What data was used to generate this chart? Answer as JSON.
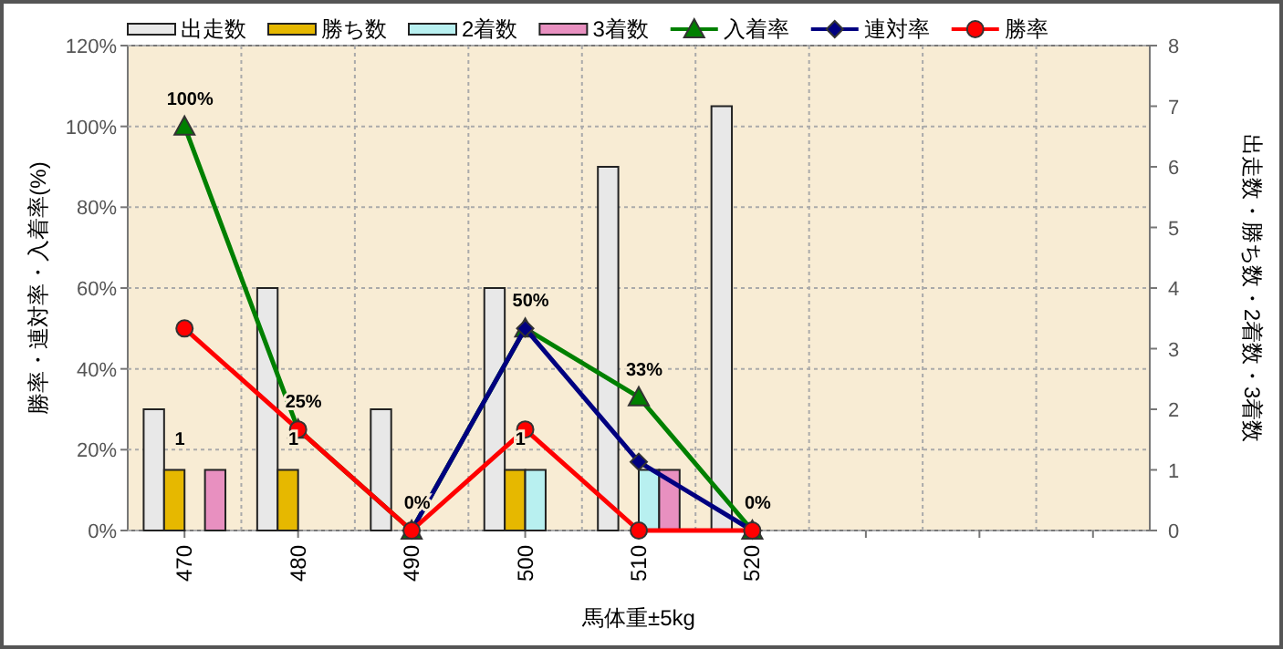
{
  "chart_data": {
    "type": "bar",
    "xlabel": "馬体重±5kg",
    "ylabel": "勝率・連対率・入着率(%)",
    "y2label": "出走数・勝ち数・2着数・3着数",
    "categories": [
      "470",
      "480",
      "490",
      "500",
      "510",
      "520",
      null,
      null,
      null
    ],
    "series": [
      {
        "name": "出走数",
        "axis": "y2",
        "color": "#e8e8e8",
        "values": [
          2,
          4,
          2,
          4,
          6,
          7,
          null,
          null,
          null
        ]
      },
      {
        "name": "勝ち数",
        "axis": "y2",
        "color": "#e6b800",
        "values": [
          1,
          1,
          0,
          1,
          0,
          0,
          null,
          null,
          null
        ],
        "value_labels": [
          "1",
          "1",
          null,
          "1",
          null,
          null,
          null,
          null,
          null
        ]
      },
      {
        "name": "2着数",
        "axis": "y2",
        "color": "#b8f0f0",
        "values": [
          0,
          0,
          0,
          1,
          1,
          0,
          null,
          null,
          null
        ]
      },
      {
        "name": "3着数",
        "axis": "y2",
        "color": "#e890c0",
        "values": [
          1,
          0,
          0,
          0,
          1,
          0,
          null,
          null,
          null
        ]
      },
      {
        "name": "入着率",
        "type": "line",
        "color": "#008000",
        "marker": "triangle",
        "values": [
          100,
          25,
          0,
          50,
          33,
          0,
          null,
          null,
          null
        ],
        "value_labels": [
          "100%",
          "25%",
          "0%",
          "50%",
          "33%",
          "0%",
          null,
          null,
          null
        ]
      },
      {
        "name": "連対率",
        "type": "line",
        "color": "#000080",
        "marker": "diamond",
        "values": [
          null,
          null,
          0,
          50,
          17,
          0,
          null,
          null,
          null
        ]
      },
      {
        "name": "勝率",
        "type": "line",
        "color": "#ff0000",
        "marker": "circle",
        "values": [
          50,
          25,
          0,
          25,
          0,
          0,
          null,
          null,
          null
        ]
      }
    ],
    "ylim": [
      0,
      120
    ],
    "yticks": [
      {
        "value": 0,
        "label": "0%"
      },
      {
        "value": 20,
        "label": "20%"
      },
      {
        "value": 40,
        "label": "40%"
      },
      {
        "value": 60,
        "label": "60%"
      },
      {
        "value": 80,
        "label": "80%"
      },
      {
        "value": 100,
        "label": "100%"
      },
      {
        "value": 120,
        "label": "120%"
      }
    ],
    "y2lim": [
      0,
      8
    ],
    "y2ticks": [
      0,
      1,
      2,
      3,
      4,
      5,
      6,
      7,
      8
    ],
    "grid": true,
    "legend": "top"
  }
}
